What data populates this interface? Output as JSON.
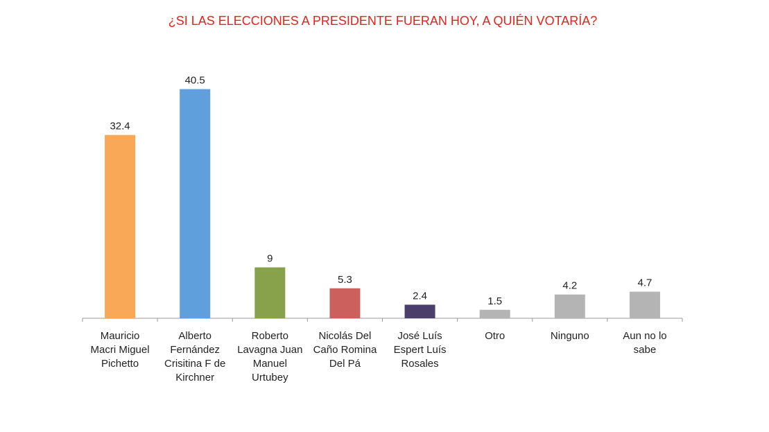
{
  "chart_data": {
    "type": "bar",
    "title": "¿SI LAS ELECCIONES A PRESIDENTE FUERAN HOY, A QUIÉN VOTARÍA?",
    "xlabel": "",
    "ylabel": "",
    "ylim": [
      0,
      45
    ],
    "grid": false,
    "legend": "none",
    "categories": [
      [
        "Mauricio",
        "Macri Miguel",
        "Pichetto"
      ],
      [
        "Alberto",
        "Fernández",
        "Crisitina F de",
        "Kirchner"
      ],
      [
        "Roberto",
        "Lavagna Juan",
        "Manuel",
        "Urtubey"
      ],
      [
        "Nicolás Del",
        "Caño Romina",
        "Del Pá"
      ],
      [
        "José Luís",
        "Espert Luís",
        "Rosales"
      ],
      [
        "Otro"
      ],
      [
        "Ninguno"
      ],
      [
        "Aun no lo",
        "sabe"
      ]
    ],
    "values": [
      32.4,
      40.5,
      9,
      5.3,
      2.4,
      1.5,
      4.2,
      4.7
    ],
    "value_labels": [
      "32.4",
      "40.5",
      "9",
      "5.3",
      "2.4",
      "1.5",
      "4.2",
      "4.7"
    ],
    "colors": [
      "#f8a857",
      "#5f9fdc",
      "#87a24a",
      "#cc605d",
      "#4a3f6b",
      "#b4b4b4",
      "#b4b4b4",
      "#b4b4b4"
    ]
  }
}
